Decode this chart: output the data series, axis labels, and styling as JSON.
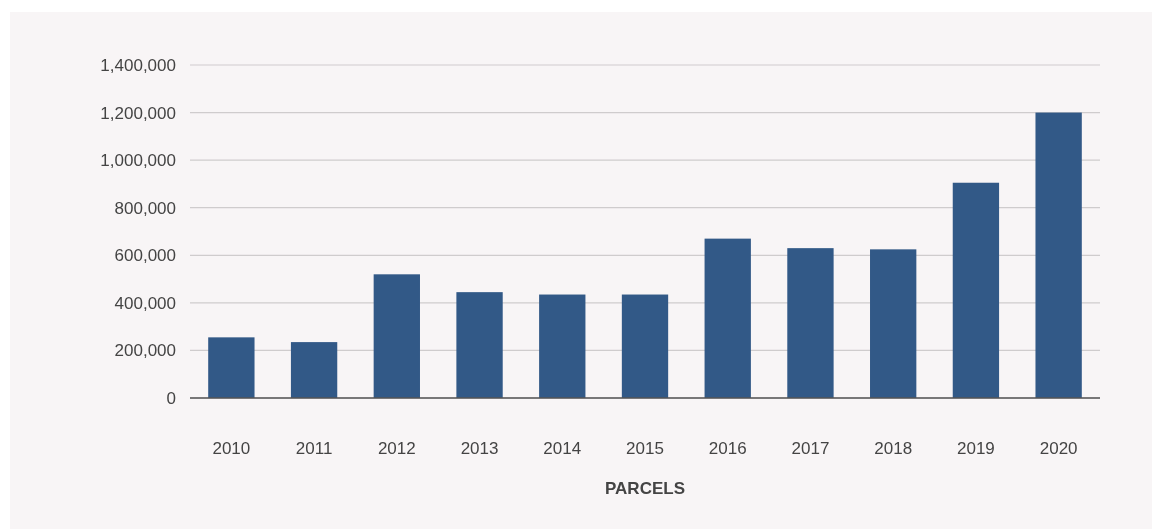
{
  "chart_data": {
    "type": "bar",
    "xlabel": "PARCELS",
    "categories": [
      "2010",
      "2011",
      "2012",
      "2013",
      "2014",
      "2015",
      "2016",
      "2017",
      "2018",
      "2019",
      "2020"
    ],
    "values": [
      255000,
      235000,
      520000,
      445000,
      435000,
      435000,
      670000,
      630000,
      625000,
      905000,
      1200000
    ],
    "color": "#325987",
    "ylim": [
      0,
      1400000
    ],
    "yticks": [
      {
        "value": 0,
        "label": "0"
      },
      {
        "value": 200000,
        "label": "200,000"
      },
      {
        "value": 400000,
        "label": "400,000"
      },
      {
        "value": 600000,
        "label": "600,000"
      },
      {
        "value": 800000,
        "label": "800,000"
      },
      {
        "value": 1000000,
        "label": "1,000,000"
      },
      {
        "value": 1200000,
        "label": "1,200,000"
      },
      {
        "value": 1400000,
        "label": "1,400,000"
      }
    ],
    "grid": "y"
  }
}
